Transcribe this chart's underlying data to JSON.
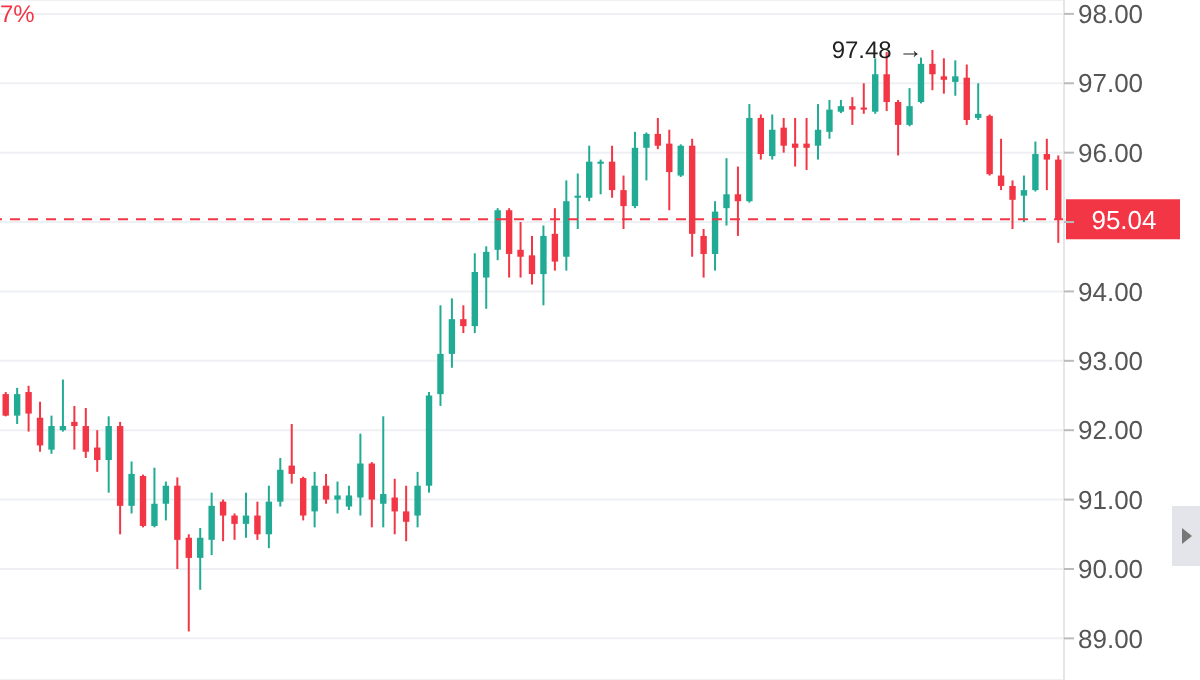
{
  "chart_data": {
    "type": "candlestick",
    "categories": [
      null,
      null,
      null,
      null,
      null,
      null,
      null,
      null,
      null,
      null,
      null,
      null,
      null,
      null,
      null,
      null,
      null,
      null,
      null,
      null,
      null,
      null,
      null,
      null,
      null,
      null,
      null,
      null,
      null,
      null,
      null,
      null,
      null,
      null,
      null,
      null,
      null,
      null,
      null,
      null,
      null,
      null,
      null,
      null,
      null,
      null,
      null,
      null,
      null,
      null,
      null,
      null,
      null,
      null,
      null,
      null,
      null,
      null,
      null,
      null,
      null,
      null,
      null,
      null,
      null,
      null,
      null,
      null,
      null,
      null,
      null,
      null,
      null,
      null,
      null,
      null,
      null,
      null,
      null,
      null,
      null,
      null,
      null,
      null,
      null,
      null,
      null,
      null,
      null,
      null,
      null,
      null,
      null
    ],
    "ohlc": [
      [
        92.52,
        92.55,
        92.2,
        92.21
      ],
      [
        92.21,
        92.61,
        92.09,
        92.52
      ],
      [
        92.55,
        92.64,
        91.98,
        92.24
      ],
      [
        92.18,
        92.41,
        91.69,
        91.78
      ],
      [
        91.72,
        92.21,
        91.66,
        92.06
      ],
      [
        92.0,
        92.73,
        91.98,
        92.06
      ],
      [
        92.12,
        92.35,
        91.72,
        92.06
      ],
      [
        92.06,
        92.32,
        91.6,
        91.69
      ],
      [
        91.75,
        92.0,
        91.4,
        91.57
      ],
      [
        91.57,
        92.2,
        91.1,
        92.06
      ],
      [
        92.06,
        92.12,
        90.5,
        90.91
      ],
      [
        90.91,
        91.55,
        90.8,
        91.37
      ],
      [
        91.34,
        91.36,
        90.6,
        90.62
      ],
      [
        90.62,
        91.46,
        90.6,
        90.94
      ],
      [
        90.94,
        91.26,
        90.7,
        91.2
      ],
      [
        91.2,
        91.32,
        90.0,
        90.42
      ],
      [
        90.45,
        90.5,
        89.1,
        90.16
      ],
      [
        90.16,
        90.59,
        89.7,
        90.45
      ],
      [
        90.42,
        91.1,
        90.2,
        90.91
      ],
      [
        90.97,
        91.0,
        90.4,
        90.77
      ],
      [
        90.77,
        90.8,
        90.42,
        90.65
      ],
      [
        90.65,
        91.1,
        90.45,
        90.77
      ],
      [
        90.77,
        90.97,
        90.42,
        90.5
      ],
      [
        90.5,
        91.2,
        90.3,
        90.97
      ],
      [
        90.97,
        91.6,
        90.9,
        91.43
      ],
      [
        91.49,
        92.09,
        91.23,
        91.37
      ],
      [
        91.31,
        91.33,
        90.7,
        90.77
      ],
      [
        90.83,
        91.4,
        90.6,
        91.2
      ],
      [
        91.2,
        91.37,
        90.94,
        91.0
      ],
      [
        91.0,
        91.26,
        90.8,
        91.06
      ],
      [
        90.9,
        91.2,
        90.85,
        91.06
      ],
      [
        91.03,
        91.95,
        90.77,
        91.52
      ],
      [
        91.52,
        91.54,
        90.6,
        91.0
      ],
      [
        90.94,
        92.2,
        90.6,
        91.08
      ],
      [
        91.03,
        91.3,
        90.5,
        90.83
      ],
      [
        90.83,
        91.2,
        90.4,
        90.68
      ],
      [
        90.77,
        91.4,
        90.6,
        91.2
      ],
      [
        91.2,
        92.55,
        91.1,
        92.5
      ],
      [
        92.52,
        93.8,
        92.35,
        93.1
      ],
      [
        93.1,
        93.9,
        92.9,
        93.6
      ],
      [
        93.6,
        93.8,
        93.4,
        93.5
      ],
      [
        93.5,
        94.55,
        93.4,
        94.28
      ],
      [
        94.2,
        94.65,
        93.75,
        94.57
      ],
      [
        94.6,
        95.2,
        94.45,
        95.17
      ],
      [
        95.17,
        95.2,
        94.2,
        94.54
      ],
      [
        94.6,
        95.0,
        94.2,
        94.5
      ],
      [
        94.52,
        94.8,
        94.1,
        94.25
      ],
      [
        94.25,
        94.95,
        93.8,
        94.8
      ],
      [
        94.83,
        95.2,
        94.3,
        94.43
      ],
      [
        94.5,
        95.6,
        94.3,
        95.3
      ],
      [
        95.35,
        95.7,
        94.9,
        95.38
      ],
      [
        95.35,
        96.1,
        95.3,
        95.87
      ],
      [
        95.84,
        95.9,
        95.4,
        95.87
      ],
      [
        95.87,
        96.1,
        95.35,
        95.46
      ],
      [
        95.46,
        95.67,
        94.9,
        95.23
      ],
      [
        95.23,
        96.3,
        95.2,
        96.07
      ],
      [
        96.07,
        96.29,
        95.6,
        96.27
      ],
      [
        96.27,
        96.5,
        96.05,
        96.1
      ],
      [
        96.13,
        96.33,
        95.17,
        95.72
      ],
      [
        95.67,
        96.12,
        95.65,
        96.1
      ],
      [
        96.1,
        96.2,
        94.5,
        94.83
      ],
      [
        94.8,
        94.9,
        94.2,
        94.54
      ],
      [
        94.54,
        95.3,
        94.3,
        95.15
      ],
      [
        95.2,
        95.92,
        94.95,
        95.4
      ],
      [
        95.4,
        95.8,
        94.8,
        95.3
      ],
      [
        95.3,
        96.7,
        95.28,
        96.5
      ],
      [
        96.5,
        96.55,
        95.9,
        95.98
      ],
      [
        95.95,
        96.55,
        95.9,
        96.33
      ],
      [
        96.36,
        96.5,
        96.0,
        96.1
      ],
      [
        96.13,
        96.5,
        95.8,
        96.07
      ],
      [
        96.13,
        96.5,
        95.75,
        96.07
      ],
      [
        96.1,
        96.7,
        95.9,
        96.33
      ],
      [
        96.3,
        96.76,
        96.2,
        96.62
      ],
      [
        96.59,
        96.76,
        96.57,
        96.67
      ],
      [
        96.67,
        96.8,
        96.4,
        96.62
      ],
      [
        96.65,
        97.0,
        96.56,
        96.62
      ],
      [
        96.59,
        97.36,
        96.56,
        97.13
      ],
      [
        97.13,
        97.45,
        96.6,
        96.73
      ],
      [
        96.73,
        96.76,
        95.96,
        96.4
      ],
      [
        96.4,
        96.93,
        96.38,
        96.67
      ],
      [
        96.73,
        97.37,
        96.71,
        97.28
      ],
      [
        97.28,
        97.48,
        96.9,
        97.13
      ],
      [
        97.1,
        97.36,
        96.85,
        97.05
      ],
      [
        97.02,
        97.33,
        96.82,
        97.1
      ],
      [
        97.08,
        97.27,
        96.4,
        96.47
      ],
      [
        96.5,
        97.0,
        96.47,
        96.56
      ],
      [
        96.53,
        96.55,
        95.67,
        95.69
      ],
      [
        95.67,
        96.2,
        95.46,
        95.52
      ],
      [
        95.52,
        95.6,
        94.9,
        95.32
      ],
      [
        95.38,
        95.67,
        95.0,
        95.46
      ],
      [
        95.46,
        96.16,
        95.44,
        95.98
      ],
      [
        95.98,
        96.2,
        95.46,
        95.9
      ],
      [
        95.9,
        95.96,
        94.7,
        95.04
      ]
    ],
    "colors": [
      "#f23645",
      "#22ab94",
      "#f23645",
      "#f23645",
      "#22ab94",
      "#22ab94",
      "#f23645",
      "#f23645",
      "#f23645",
      "#22ab94",
      "#f23645",
      "#22ab94",
      "#f23645",
      "#22ab94",
      "#22ab94",
      "#f23645",
      "#f23645",
      "#22ab94",
      "#22ab94",
      "#f23645",
      "#f23645",
      "#22ab94",
      "#f23645",
      "#22ab94",
      "#22ab94",
      "#f23645",
      "#f23645",
      "#22ab94",
      "#f23645",
      "#22ab94",
      "#22ab94",
      "#22ab94",
      "#f23645",
      "#22ab94",
      "#f23645",
      "#f23645",
      "#22ab94",
      "#22ab94",
      "#22ab94",
      "#22ab94",
      "#f23645",
      "#22ab94",
      "#22ab94",
      "#22ab94",
      "#f23645",
      "#f23645",
      "#f23645",
      "#22ab94",
      "#f23645",
      "#22ab94",
      "#22ab94",
      "#22ab94",
      "#22ab94",
      "#f23645",
      "#f23645",
      "#22ab94",
      "#22ab94",
      "#f23645",
      "#f23645",
      "#22ab94",
      "#f23645",
      "#f23645",
      "#22ab94",
      "#22ab94",
      "#f23645",
      "#22ab94",
      "#f23645",
      "#22ab94",
      "#f23645",
      "#f23645",
      "#f23645",
      "#22ab94",
      "#22ab94",
      "#22ab94",
      "#f23645",
      "#f23645",
      "#22ab94",
      "#f23645",
      "#f23645",
      "#22ab94",
      "#22ab94",
      "#f23645",
      "#f23645",
      "#22ab94",
      "#f23645",
      "#22ab94",
      "#f23645",
      "#f23645",
      "#f23645",
      "#22ab94",
      "#22ab94",
      "#f23645",
      "#f23645"
    ],
    "ylim": [
      88.4,
      98.2
    ],
    "yticks": [
      {
        "value": 89,
        "label": "89.00"
      },
      {
        "value": 90,
        "label": "90.00"
      },
      {
        "value": 91,
        "label": "91.00"
      },
      {
        "value": 92,
        "label": "92.00"
      },
      {
        "value": 93,
        "label": "93.00"
      },
      {
        "value": 94,
        "label": "94.00"
      },
      {
        "value": 95,
        "label": null
      },
      {
        "value": 96,
        "label": "96.00"
      },
      {
        "value": 97,
        "label": "97.00"
      },
      {
        "value": 98,
        "label": "98.00"
      }
    ],
    "tick_labels": "y",
    "grid": "y",
    "ref_lines": [
      {
        "axis": "y",
        "value": 95.04,
        "label": "95.04",
        "color": "#f23645",
        "line_style": "dashed"
      }
    ],
    "annotations": [
      "7%",
      {
        "text": "97.48 →",
        "y": 97.48
      }
    ]
  }
}
